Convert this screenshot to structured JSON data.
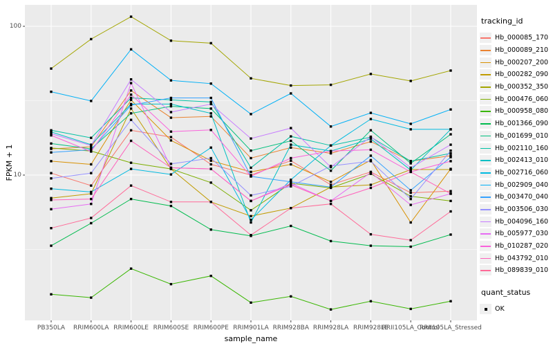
{
  "chart_data": {
    "type": "line",
    "title": "",
    "xlabel": "sample_name",
    "ylabel": "FPKM + 1",
    "y_scale": "log10",
    "y_axis_ticks": [
      {
        "label": "10",
        "value": 10
      },
      {
        "label": "100",
        "value": 100
      }
    ],
    "y_minor_gridlines": [
      3.162,
      31.62
    ],
    "categories": [
      "PB350LA",
      "RRIM600LA",
      "RRIM600LE",
      "RRIM600SE",
      "RRIM600PE",
      "RRIM901LA",
      "RRIM928BA",
      "RRIM928LA",
      "RRIM928LE",
      "RRII105LA_Control",
      "RRII105LA_Stressed"
    ],
    "series": [
      {
        "name": "Hb_000085_170",
        "color": "#F8766D",
        "values": [
          10.3,
          8.5,
          20,
          18,
          11.8,
          10,
          12.5,
          8.6,
          10.5,
          7.6,
          7.8
        ]
      },
      {
        "name": "Hb_000089_210",
        "color": "#EA8331",
        "values": [
          15,
          15.5,
          37,
          24.3,
          24.8,
          13,
          15.3,
          14,
          16.8,
          12.4,
          13.5
        ]
      },
      {
        "name": "Hb_000207_200",
        "color": "#D89000",
        "values": [
          12.4,
          11.8,
          32,
          17.1,
          12.5,
          10.5,
          11.8,
          9,
          12.6,
          4.8,
          11
        ]
      },
      {
        "name": "Hb_000282_090",
        "color": "#C09B00",
        "values": [
          7.0,
          7.5,
          28,
          11,
          6.6,
          5.3,
          6.0,
          8.3,
          8.6,
          10.9,
          10.9
        ]
      },
      {
        "name": "Hb_000352_350",
        "color": "#A3A500",
        "values": [
          52,
          82,
          116,
          80,
          77,
          44.7,
          40,
          40.4,
          47.8,
          42.9,
          50.4
        ]
      },
      {
        "name": "Hb_000476_060",
        "color": "#7CAE00",
        "values": [
          15.2,
          14.5,
          12.1,
          11,
          8.9,
          5.8,
          8.8,
          8.2,
          10.2,
          7.2,
          6.7
        ]
      },
      {
        "name": "Hb_000958_080",
        "color": "#39B600",
        "values": [
          1.58,
          1.5,
          2.35,
          1.85,
          2.1,
          1.39,
          1.53,
          1.25,
          1.42,
          1.26,
          1.42
        ]
      },
      {
        "name": "Hb_001366_090",
        "color": "#00BB4E",
        "values": [
          3.35,
          4.75,
          6.9,
          6.2,
          4.3,
          3.9,
          4.55,
          3.6,
          3.35,
          3.3,
          3.98
        ]
      },
      {
        "name": "Hb_001699_010",
        "color": "#00BF7D",
        "values": [
          16.3,
          15,
          26,
          29,
          28,
          14.6,
          17,
          10.7,
          20,
          12,
          18.8
        ]
      },
      {
        "name": "Hb_002110_160",
        "color": "#00C1A3",
        "values": [
          20,
          17.8,
          33,
          32,
          31,
          11.2,
          18.2,
          15.8,
          18,
          12.4,
          14
        ]
      },
      {
        "name": "Hb_002413_010",
        "color": "#00BFC4",
        "values": [
          19.5,
          16,
          30,
          30,
          26,
          4.8,
          16,
          14.5,
          17.5,
          10.8,
          20.3
        ]
      },
      {
        "name": "Hb_002716_060",
        "color": "#00BAE0",
        "values": [
          8.1,
          7.7,
          11,
          10.1,
          15.3,
          5.0,
          9.3,
          15.8,
          23.8,
          20.3,
          20.3
        ]
      },
      {
        "name": "Hb_002909_040",
        "color": "#00B0F6",
        "values": [
          36.3,
          31.5,
          70,
          43.3,
          41.2,
          25.7,
          35.4,
          21.2,
          26.2,
          22.1,
          27.6
        ]
      },
      {
        "name": "Hb_003470_040",
        "color": "#35A2FF",
        "values": [
          14.2,
          14.8,
          29.5,
          33,
          33,
          9.8,
          9.0,
          8.3,
          13.5,
          7.9,
          13.2
        ]
      },
      {
        "name": "Hb_003506_030",
        "color": "#9590FF",
        "values": [
          9.5,
          10.3,
          23.5,
          11.9,
          13.0,
          7.3,
          8.4,
          11.5,
          12.4,
          6.9,
          14.6
        ]
      },
      {
        "name": "Hb_004096_160",
        "color": "#C77CFF",
        "values": [
          19,
          15.8,
          44,
          26.5,
          30,
          17.6,
          20.7,
          11.3,
          18.1,
          11.2,
          16.0
        ]
      },
      {
        "name": "Hb_005977_030",
        "color": "#E76BF3",
        "values": [
          5.9,
          6.4,
          41.5,
          11.2,
          11,
          6.7,
          8.8,
          6.7,
          10.4,
          6.3,
          7.5
        ]
      },
      {
        "name": "Hb_010287_020",
        "color": "#FA62DB",
        "values": [
          18.5,
          14.4,
          34.7,
          19.6,
          20.1,
          9.8,
          13,
          14.5,
          14.8,
          10.5,
          12.4
        ]
      },
      {
        "name": "Hb_043792_010",
        "color": "#FF62BC",
        "values": [
          6.8,
          6.9,
          17,
          11.2,
          11,
          6.7,
          8.6,
          6.7,
          8.2,
          10.5,
          7.5
        ]
      },
      {
        "name": "Hb_089839_010",
        "color": "#FF6A98",
        "values": [
          4.4,
          5.15,
          8.5,
          6.6,
          6.6,
          3.95,
          6.0,
          6.4,
          4.0,
          3.65,
          5.7
        ]
      }
    ],
    "point_shape": "black-square",
    "legend_position": "right",
    "grid": true
  },
  "legend": {
    "tracking": {
      "title": "tracking_id"
    },
    "quant": {
      "title": "quant_status",
      "items": [
        {
          "label": "OK"
        }
      ]
    }
  },
  "style_colors": {
    "panel_background": "#EBEBEB",
    "gridline": "#FFFFFF",
    "point": "#000000",
    "tick_mark": "#333333",
    "tick_text": "#4d4d4d",
    "legend_key_background": "#F0F0F0"
  }
}
